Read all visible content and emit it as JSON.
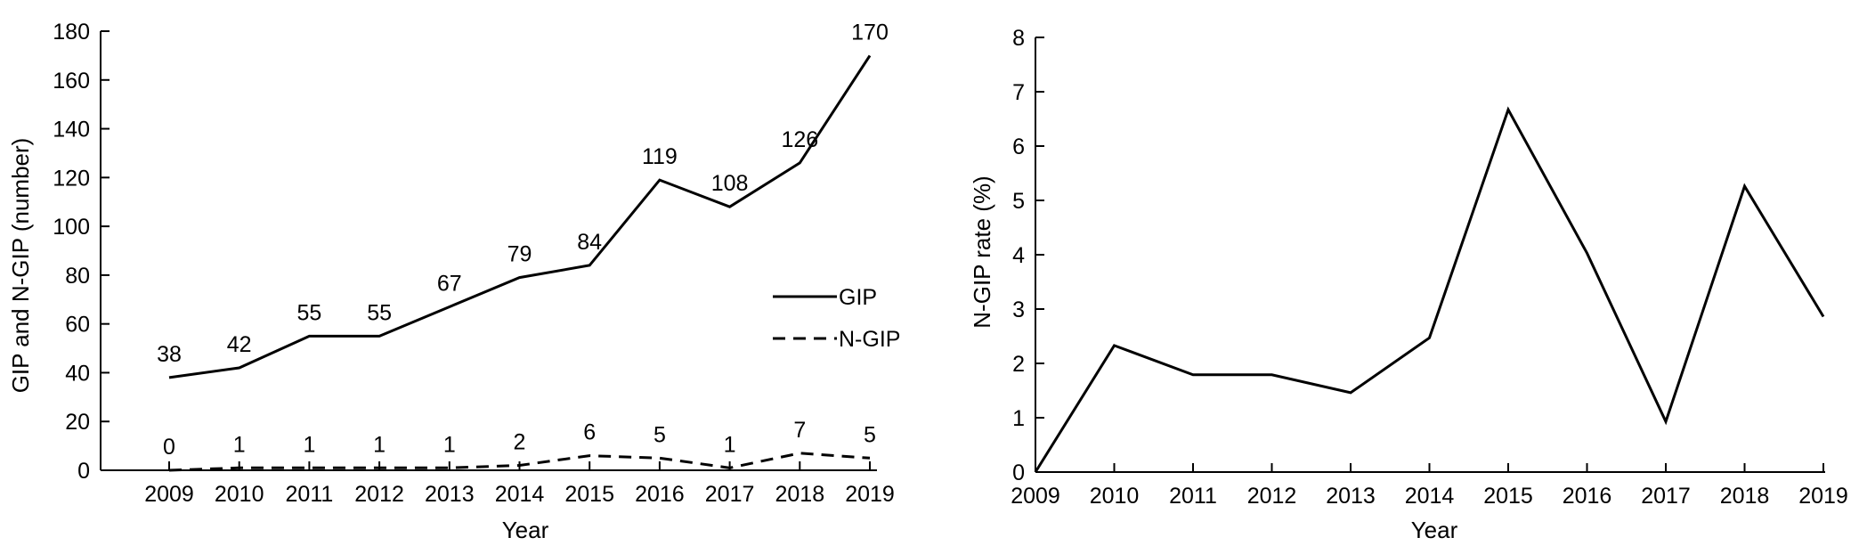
{
  "chart_data": [
    {
      "type": "line",
      "x": [
        "2009",
        "2010",
        "2011",
        "2012",
        "2013",
        "2014",
        "2015",
        "2016",
        "2017",
        "2018",
        "2019"
      ],
      "series": [
        {
          "name": "GIP",
          "values": [
            38,
            42,
            55,
            55,
            67,
            79,
            84,
            119,
            108,
            126,
            170
          ],
          "style": "solid"
        },
        {
          "name": "N-GIP",
          "values": [
            0,
            1,
            1,
            1,
            1,
            2,
            6,
            5,
            1,
            7,
            5
          ],
          "style": "dashed"
        }
      ],
      "data_labels": {
        "GIP": [
          "38",
          "42",
          "55",
          "55",
          "67",
          "79",
          "84",
          "119",
          "108",
          "126",
          "170"
        ],
        "N-GIP": [
          "0",
          "1",
          "1",
          "1",
          "1",
          "2",
          "6",
          "5",
          "1",
          "7",
          "5"
        ]
      },
      "yticks": [
        "0",
        "20",
        "40",
        "60",
        "80",
        "100",
        "120",
        "140",
        "160",
        "180"
      ],
      "ylim": [
        0,
        180
      ],
      "xlabel": "Year",
      "ylabel": "GIP and N-GIP (number)",
      "legend": "right",
      "grid": false
    },
    {
      "type": "line",
      "x": [
        "2009",
        "2010",
        "2011",
        "2012",
        "2013",
        "2014",
        "2015",
        "2016",
        "2017",
        "2018",
        "2019"
      ],
      "series": [
        {
          "values": [
            0,
            2.33,
            1.79,
            1.79,
            1.46,
            2.47,
            6.67,
            4.03,
            0.93,
            5.26,
            2.86
          ],
          "style": "solid"
        }
      ],
      "yticks": [
        "0",
        "1",
        "2",
        "3",
        "4",
        "5",
        "6",
        "7",
        "8"
      ],
      "ylim": [
        0,
        8
      ],
      "xlabel": "Year",
      "ylabel": "N-GIP rate (%)",
      "grid": false
    }
  ]
}
